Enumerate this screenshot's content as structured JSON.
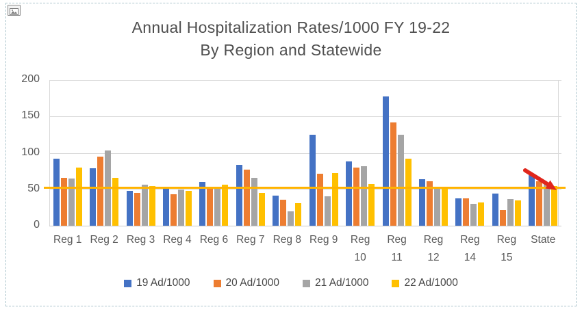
{
  "frame": {
    "selection_border_color": "#a9c2cb",
    "background": "#ffffff"
  },
  "icons": {
    "top_left_badge": "picture-icon"
  },
  "chart_data": {
    "type": "bar",
    "title": "Annual Hospitalization Rates/1000 FY 19-22 By Region and Statewide",
    "title_lines": [
      "Annual Hospitalization Rates/1000 FY 19-22",
      "By Region and Statewide"
    ],
    "categories": [
      "Reg 1",
      "Reg 2",
      "Reg 3",
      "Reg 4",
      "Reg 6",
      "Reg 7",
      "Reg 8",
      "Reg 9",
      "Reg 10",
      "Reg 11",
      "Reg 12",
      "Reg 14",
      "Reg 15",
      "State"
    ],
    "series": [
      {
        "name": "19 Ad/1000",
        "color": "#4472C4",
        "values": [
          92,
          79,
          48,
          51,
          60,
          84,
          41,
          125,
          88,
          177,
          64,
          38,
          44,
          71
        ]
      },
      {
        "name": "20 Ad/1000",
        "color": "#ED7D31",
        "values": [
          66,
          95,
          45,
          43,
          51,
          77,
          36,
          71,
          80,
          142,
          61,
          38,
          22,
          61
        ]
      },
      {
        "name": "21 Ad/1000",
        "color": "#A5A5A5",
        "values": [
          65,
          103,
          56,
          50,
          53,
          66,
          20,
          40,
          82,
          125,
          53,
          30,
          37,
          57
        ]
      },
      {
        "name": "22 Ad/1000",
        "color": "#FFC000",
        "values": [
          80,
          66,
          54,
          48,
          56,
          45,
          31,
          72,
          57,
          92,
          52,
          32,
          35,
          54
        ]
      }
    ],
    "xlabel": "",
    "ylabel": "",
    "ylim": [
      0,
      200
    ],
    "yticks": [
      0,
      50,
      100,
      150,
      200
    ],
    "grid": true,
    "legend_position": "bottom",
    "reference_line": {
      "value": 53,
      "color": "#FFB300"
    },
    "annotation": {
      "shape": "arrow",
      "direction": "down-right",
      "color": "#E0261C",
      "near_category": "State"
    }
  }
}
